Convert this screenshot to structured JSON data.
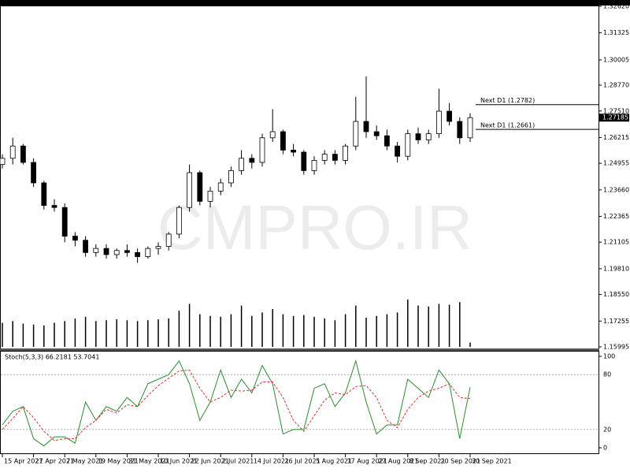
{
  "chart_data": {
    "type": "candlestick",
    "watermark": "CMPRO.IR",
    "indicator_label": "Stoch(5,3,3) 66.2181 53.7041",
    "categories": [
      "15 Apr 2021",
      null,
      null,
      "27 Apr 2021",
      null,
      null,
      "7 May 2021",
      null,
      null,
      "19 May 2021",
      null,
      null,
      "31 May 2021",
      null,
      null,
      "10 Jun 2021",
      null,
      null,
      "22 Jun 2021",
      null,
      null,
      "2 Jul 2021",
      null,
      null,
      "14 Jul 2021",
      null,
      null,
      "26 Jul 2021",
      null,
      null,
      "5 Aug 2021",
      null,
      null,
      "17 Aug 2021",
      null,
      null,
      "27 Aug 2021",
      null,
      null,
      "8 Sep 2021",
      null,
      null,
      "20 Sep 2021",
      null,
      null,
      "30 Sep 2021"
    ],
    "open": [
      1.249,
      1.252,
      1.258,
      1.25,
      1.24,
      1.229,
      1.228,
      1.214,
      1.212,
      1.206,
      1.208,
      1.205,
      1.207,
      1.206,
      1.204,
      1.208,
      1.209,
      1.215,
      1.228,
      1.245,
      1.231,
      1.236,
      1.24,
      1.246,
      1.252,
      1.25,
      1.262,
      1.265,
      1.256,
      1.255,
      1.246,
      1.251,
      1.254,
      1.251,
      1.258,
      1.27,
      1.265,
      1.263,
      1.258,
      1.253,
      1.264,
      1.261,
      1.264,
      1.275,
      1.27,
      1.262
    ],
    "high": [
      1.254,
      1.262,
      1.259,
      1.252,
      1.241,
      1.232,
      1.23,
      1.216,
      1.214,
      1.21,
      1.21,
      1.208,
      1.21,
      1.208,
      1.209,
      1.211,
      1.216,
      1.229,
      1.249,
      1.246,
      1.238,
      1.242,
      1.248,
      1.256,
      1.254,
      1.264,
      1.276,
      1.266,
      1.259,
      1.256,
      1.253,
      1.256,
      1.256,
      1.259,
      1.282,
      1.292,
      1.268,
      1.266,
      1.26,
      1.266,
      1.267,
      1.266,
      1.286,
      1.279,
      1.272,
      1.274
    ],
    "low": [
      1.247,
      1.249,
      1.249,
      1.238,
      1.227,
      1.226,
      1.211,
      1.209,
      1.204,
      1.204,
      1.203,
      1.203,
      1.204,
      1.201,
      1.203,
      1.205,
      1.207,
      1.213,
      1.226,
      1.229,
      1.228,
      1.234,
      1.238,
      1.244,
      1.247,
      1.248,
      1.26,
      1.254,
      1.253,
      1.244,
      1.244,
      1.249,
      1.249,
      1.249,
      1.256,
      1.262,
      1.261,
      1.256,
      1.25,
      1.251,
      1.259,
      1.259,
      1.262,
      1.268,
      1.259,
      1.26
    ],
    "close": [
      1.252,
      1.258,
      1.25,
      1.24,
      1.229,
      1.228,
      1.214,
      1.212,
      1.206,
      1.208,
      1.205,
      1.207,
      1.206,
      1.204,
      1.208,
      1.209,
      1.215,
      1.228,
      1.245,
      1.231,
      1.236,
      1.24,
      1.246,
      1.252,
      1.25,
      1.262,
      1.265,
      1.256,
      1.255,
      1.246,
      1.251,
      1.254,
      1.251,
      1.258,
      1.27,
      1.265,
      1.263,
      1.258,
      1.253,
      1.264,
      1.261,
      1.264,
      1.275,
      1.27,
      1.262,
      1.27185
    ],
    "volume": [
      28,
      30,
      27,
      26,
      25,
      28,
      30,
      33,
      35,
      30,
      31,
      32,
      31,
      30,
      31,
      32,
      33,
      42,
      50,
      38,
      36,
      35,
      38,
      48,
      36,
      40,
      44,
      38,
      36,
      37,
      35,
      33,
      31,
      38,
      48,
      34,
      36,
      38,
      40,
      55,
      48,
      47,
      50,
      49,
      52,
      5
    ],
    "ylim": [
      1.15995,
      1.3262
    ],
    "yticks": [
      {
        "value": 1.3262,
        "label": "1.32620"
      },
      1.31325,
      1.30005,
      {
        "value": 1.2877,
        "label": "1.28770"
      },
      {
        "value": 1.2751,
        "label": "1.27510"
      },
      1.26215,
      1.24955,
      {
        "value": 1.2366,
        "label": "1.23660"
      },
      1.22365,
      1.21105,
      {
        "value": 1.1981,
        "label": "1.19810"
      },
      {
        "value": 1.1855,
        "label": "1.18550"
      },
      1.17255,
      1.15995
    ],
    "last_price": 1.27185,
    "levels": [
      {
        "label": "Next D1 (1.2782)",
        "value": 1.2782
      },
      {
        "label": "Next D1 (1.2661)",
        "value": 1.2661
      }
    ],
    "stoch": {
      "ylim": [
        0,
        100
      ],
      "yticks": [
        100,
        80,
        20,
        0
      ],
      "series": [
        {
          "color": "#2e8b2e",
          "values": [
            25,
            40,
            45,
            10,
            2,
            12,
            12,
            5,
            50,
            30,
            45,
            40,
            55,
            45,
            70,
            75,
            80,
            95,
            70,
            30,
            50,
            85,
            55,
            75,
            60,
            90,
            70,
            15,
            20,
            20,
            65,
            70,
            45,
            60,
            95,
            50,
            15,
            25,
            25,
            75,
            65,
            55,
            85,
            70,
            10,
            66.2181
          ]
        },
        {
          "color": "#e03030",
          "values": [
            20,
            32,
            45,
            33,
            18,
            8,
            10,
            10,
            22,
            30,
            42,
            38,
            47,
            45,
            57,
            68,
            76,
            84,
            85,
            65,
            50,
            55,
            63,
            62,
            63,
            72,
            72,
            55,
            30,
            18,
            35,
            52,
            60,
            58,
            67,
            68,
            55,
            30,
            22,
            42,
            55,
            62,
            65,
            70,
            55,
            53.7041
          ]
        }
      ]
    }
  }
}
